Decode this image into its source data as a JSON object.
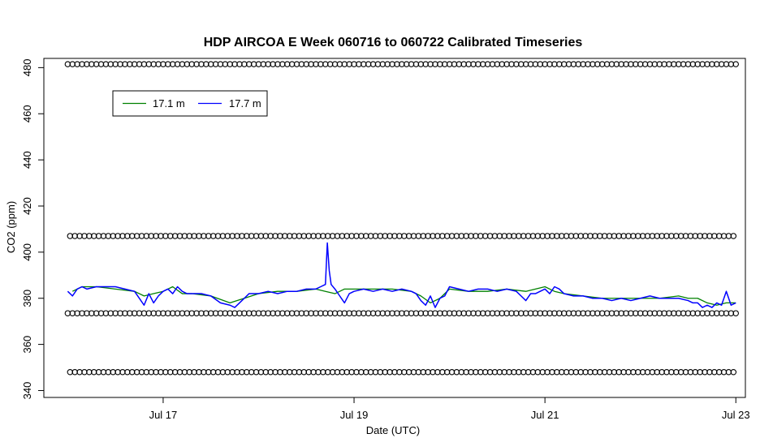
{
  "chart_data": {
    "type": "line",
    "title": "HDP AIRCOA E  Week 060716 to 060722  Calibrated Timeseries",
    "xlabel": "Date (UTC)",
    "ylabel": "CO2 (ppm)",
    "xlim": [
      15.75,
      23.1
    ],
    "ylim": [
      337,
      484
    ],
    "x_ticks": [
      {
        "value": 17,
        "label": "Jul 17"
      },
      {
        "value": 19,
        "label": "Jul 19"
      },
      {
        "value": 21,
        "label": "Jul 21"
      },
      {
        "value": 23,
        "label": "Jul 23"
      }
    ],
    "y_ticks": [
      340,
      360,
      380,
      400,
      420,
      440,
      460,
      480
    ],
    "grid": false,
    "legend": {
      "position": "top-left",
      "entries": [
        {
          "name": "17.1 m",
          "color": "#008000"
        },
        {
          "name": "17.7 m",
          "color": "#0000ff"
        }
      ]
    },
    "series": [
      {
        "name": "17.1 m",
        "color": "#008000",
        "x": [
          16.05,
          16.15,
          16.3,
          16.5,
          16.7,
          16.8,
          16.9,
          17.0,
          17.1,
          17.2,
          17.3,
          17.5,
          17.7,
          17.85,
          18.0,
          18.2,
          18.4,
          18.6,
          18.7,
          18.8,
          18.9,
          19.0,
          19.2,
          19.4,
          19.6,
          19.7,
          19.8,
          19.9,
          20.0,
          20.2,
          20.4,
          20.6,
          20.8,
          20.9,
          21.0,
          21.1,
          21.2,
          21.4,
          21.6,
          21.8,
          22.0,
          22.2,
          22.4,
          22.5,
          22.6,
          22.7,
          22.8,
          22.9,
          23.0
        ],
        "values": [
          383,
          385,
          385,
          384,
          383,
          381,
          382,
          383,
          385,
          382,
          382,
          381,
          378,
          380,
          382,
          383,
          383,
          384,
          383,
          382,
          384,
          384,
          384,
          384,
          383,
          381,
          378,
          380,
          384,
          383,
          383,
          384,
          383,
          384,
          385,
          383,
          382,
          381,
          380,
          380,
          380,
          380,
          381,
          380,
          380,
          378,
          377,
          378,
          378
        ]
      },
      {
        "name": "17.7 m",
        "color": "#0000ff",
        "x": [
          16.0,
          16.05,
          16.1,
          16.15,
          16.2,
          16.3,
          16.4,
          16.5,
          16.6,
          16.7,
          16.75,
          16.8,
          16.85,
          16.9,
          16.95,
          17.0,
          17.05,
          17.1,
          17.15,
          17.2,
          17.25,
          17.3,
          17.4,
          17.5,
          17.6,
          17.7,
          17.75,
          17.8,
          17.85,
          17.9,
          18.0,
          18.1,
          18.2,
          18.3,
          18.4,
          18.5,
          18.6,
          18.65,
          18.7,
          18.72,
          18.74,
          18.76,
          18.8,
          18.85,
          18.9,
          18.95,
          19.0,
          19.1,
          19.2,
          19.3,
          19.4,
          19.5,
          19.6,
          19.65,
          19.7,
          19.75,
          19.8,
          19.85,
          19.9,
          19.95,
          20.0,
          20.1,
          20.2,
          20.3,
          20.4,
          20.5,
          20.6,
          20.7,
          20.75,
          20.8,
          20.85,
          20.9,
          21.0,
          21.05,
          21.1,
          21.15,
          21.2,
          21.3,
          21.4,
          21.5,
          21.6,
          21.7,
          21.8,
          21.9,
          22.0,
          22.1,
          22.2,
          22.3,
          22.4,
          22.5,
          22.55,
          22.6,
          22.65,
          22.7,
          22.75,
          22.8,
          22.85,
          22.9,
          22.95,
          23.0
        ],
        "values": [
          383,
          381,
          384,
          385,
          384,
          385,
          385,
          385,
          384,
          383,
          380,
          377,
          382,
          378,
          381,
          383,
          384,
          382,
          385,
          383,
          382,
          382,
          382,
          381,
          378,
          377,
          376,
          378,
          380,
          382,
          382,
          383,
          382,
          383,
          383,
          384,
          384,
          385,
          386,
          404,
          392,
          386,
          384,
          381,
          378,
          382,
          383,
          384,
          383,
          384,
          383,
          384,
          383,
          382,
          379,
          377,
          381,
          376,
          380,
          381,
          385,
          384,
          383,
          384,
          384,
          383,
          384,
          383,
          381,
          379,
          382,
          382,
          384,
          382,
          385,
          384,
          382,
          381,
          381,
          380,
          380,
          379,
          380,
          379,
          380,
          381,
          380,
          380,
          380,
          379,
          378,
          378,
          376,
          377,
          376,
          378,
          377,
          383,
          377,
          378
        ]
      }
    ],
    "calibration_markers": {
      "levels": [
        481.5,
        407,
        373.5,
        348
      ],
      "start": 16.0,
      "end": 23.0
    }
  }
}
